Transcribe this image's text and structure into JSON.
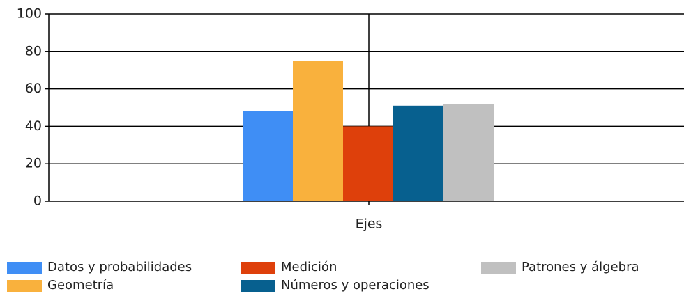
{
  "chart_data": {
    "type": "bar",
    "categories": [
      "Ejes"
    ],
    "series": [
      {
        "name": "Datos y probabilidades",
        "color": "#3f8ef5",
        "values": [
          48
        ]
      },
      {
        "name": "Geometría",
        "color": "#f9b13d",
        "values": [
          75
        ]
      },
      {
        "name": "Medición",
        "color": "#de400b",
        "values": [
          40
        ]
      },
      {
        "name": "Números y operaciones",
        "color": "#07608f",
        "values": [
          51
        ]
      },
      {
        "name": "Patrones y álgebra",
        "color": "#c0c0c0",
        "values": [
          52
        ]
      }
    ],
    "ylim": [
      0,
      100
    ],
    "yticks": [
      0,
      20,
      40,
      60,
      80,
      100
    ],
    "grid": true,
    "legend": "bottom"
  }
}
